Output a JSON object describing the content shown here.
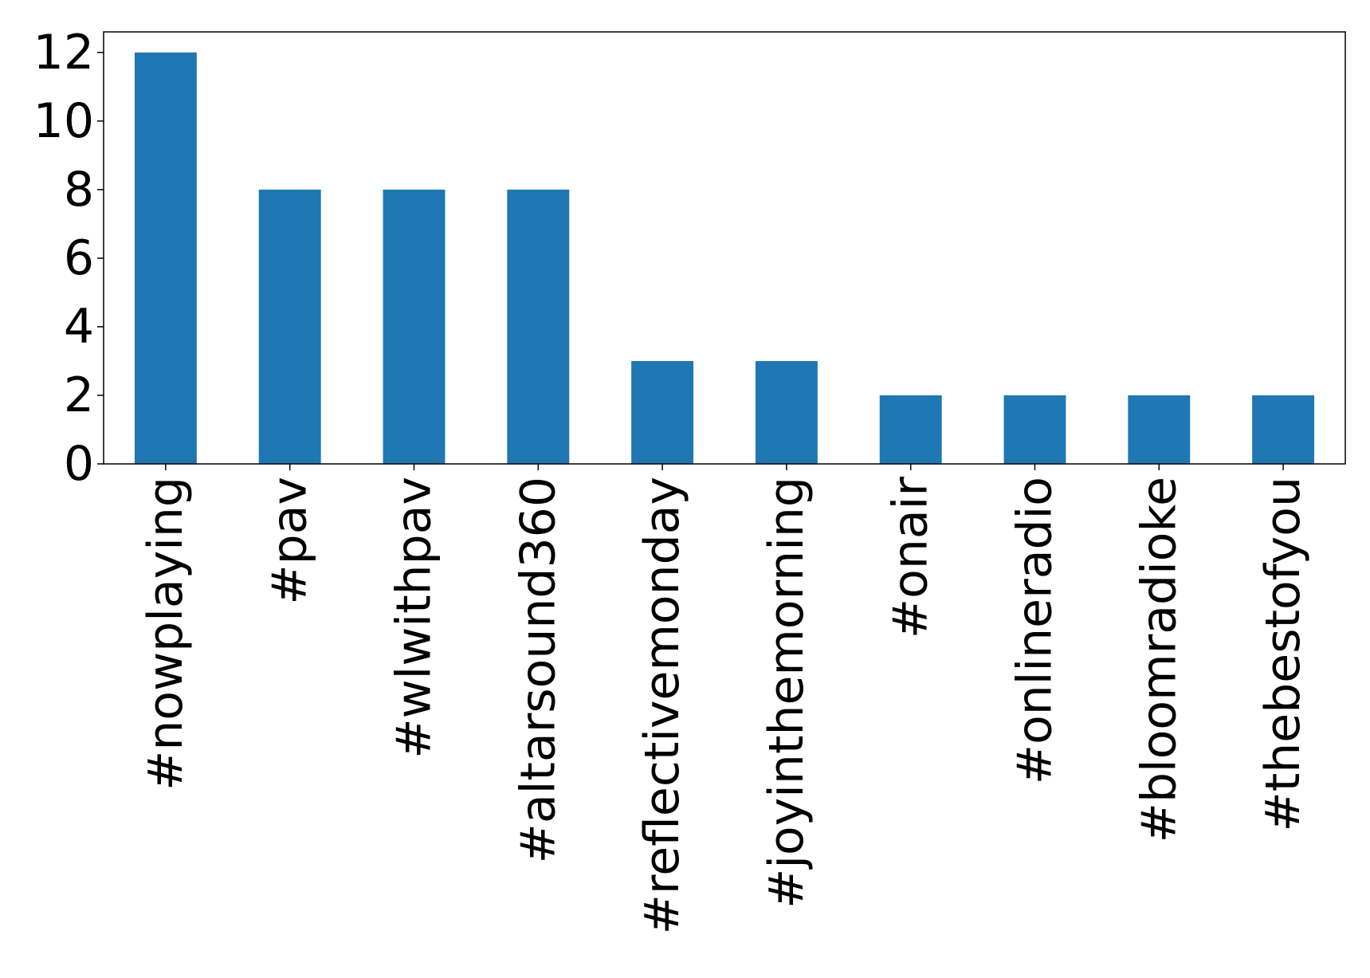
{
  "chart_data": {
    "type": "bar",
    "title": "",
    "xlabel": "",
    "ylabel": "",
    "categories": [
      "#nowplaying",
      "#pav",
      "#wlwithpav",
      "#altarsound360",
      "#reflectivemonday",
      "#joyinthemorning",
      "#onair",
      "#onlineradio",
      "#bloomradioke",
      "#thebestofyou"
    ],
    "values": [
      12,
      8,
      8,
      8,
      3,
      3,
      2,
      2,
      2,
      2
    ],
    "yticks": [
      "0",
      "2",
      "4",
      "6",
      "8",
      "10",
      "12"
    ],
    "ylim": [
      0,
      12.6
    ],
    "grid": false,
    "legend": "none",
    "bar_color": "#1f77b4"
  }
}
